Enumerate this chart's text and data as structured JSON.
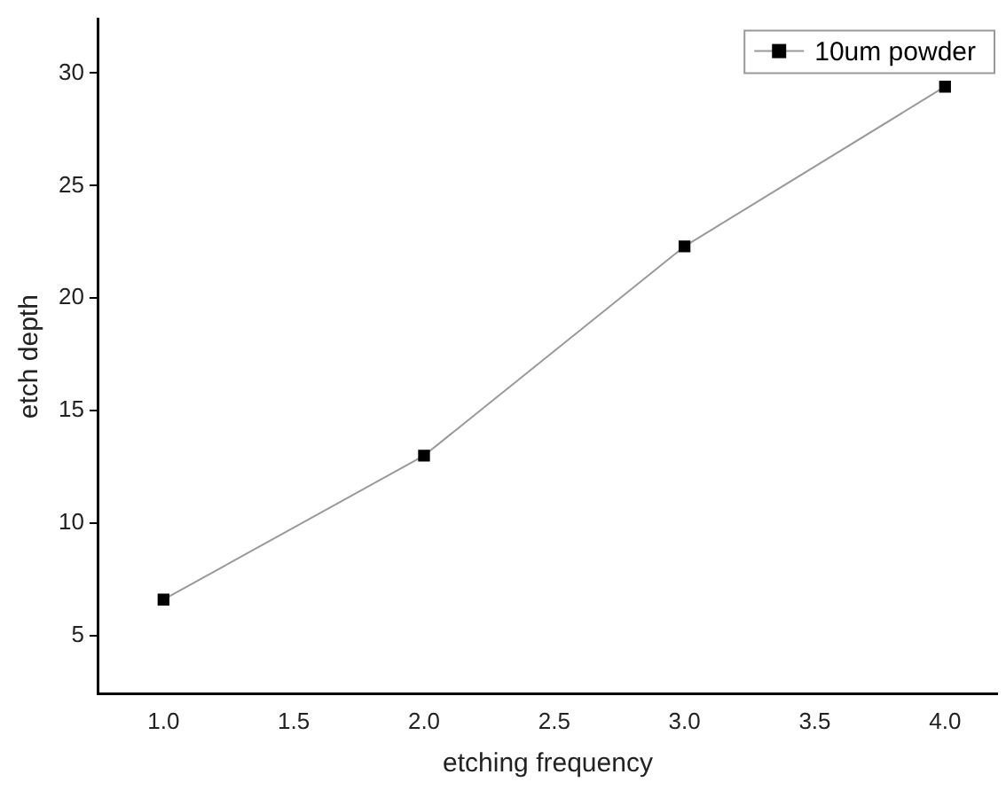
{
  "chart_data": {
    "type": "line",
    "xlabel": "etching frequency",
    "ylabel": "etch depth",
    "x": [
      1.0,
      2.0,
      3.0,
      4.0
    ],
    "series": [
      {
        "name": "10um powder",
        "color": "#000000",
        "values": [
          6.6,
          13.0,
          22.3,
          29.4
        ]
      }
    ],
    "xlim": [
      0.75,
      4.2
    ],
    "xticks": [
      {
        "value": 1,
        "label": "1.0"
      },
      {
        "value": 1.5,
        "label": "1.5"
      },
      {
        "value": 2,
        "label": "2.0"
      },
      {
        "value": 2.5,
        "label": "2.5"
      },
      {
        "value": 3,
        "label": "3.0"
      },
      {
        "value": 3.5,
        "label": "3.5"
      },
      {
        "value": 4,
        "label": "4.0"
      }
    ],
    "ylim": [
      2.4,
      32.4
    ],
    "yticks": [
      5,
      10,
      15,
      20,
      25,
      30
    ],
    "grid": false,
    "legend": "top right",
    "marker": "square",
    "line_style": "solid"
  }
}
